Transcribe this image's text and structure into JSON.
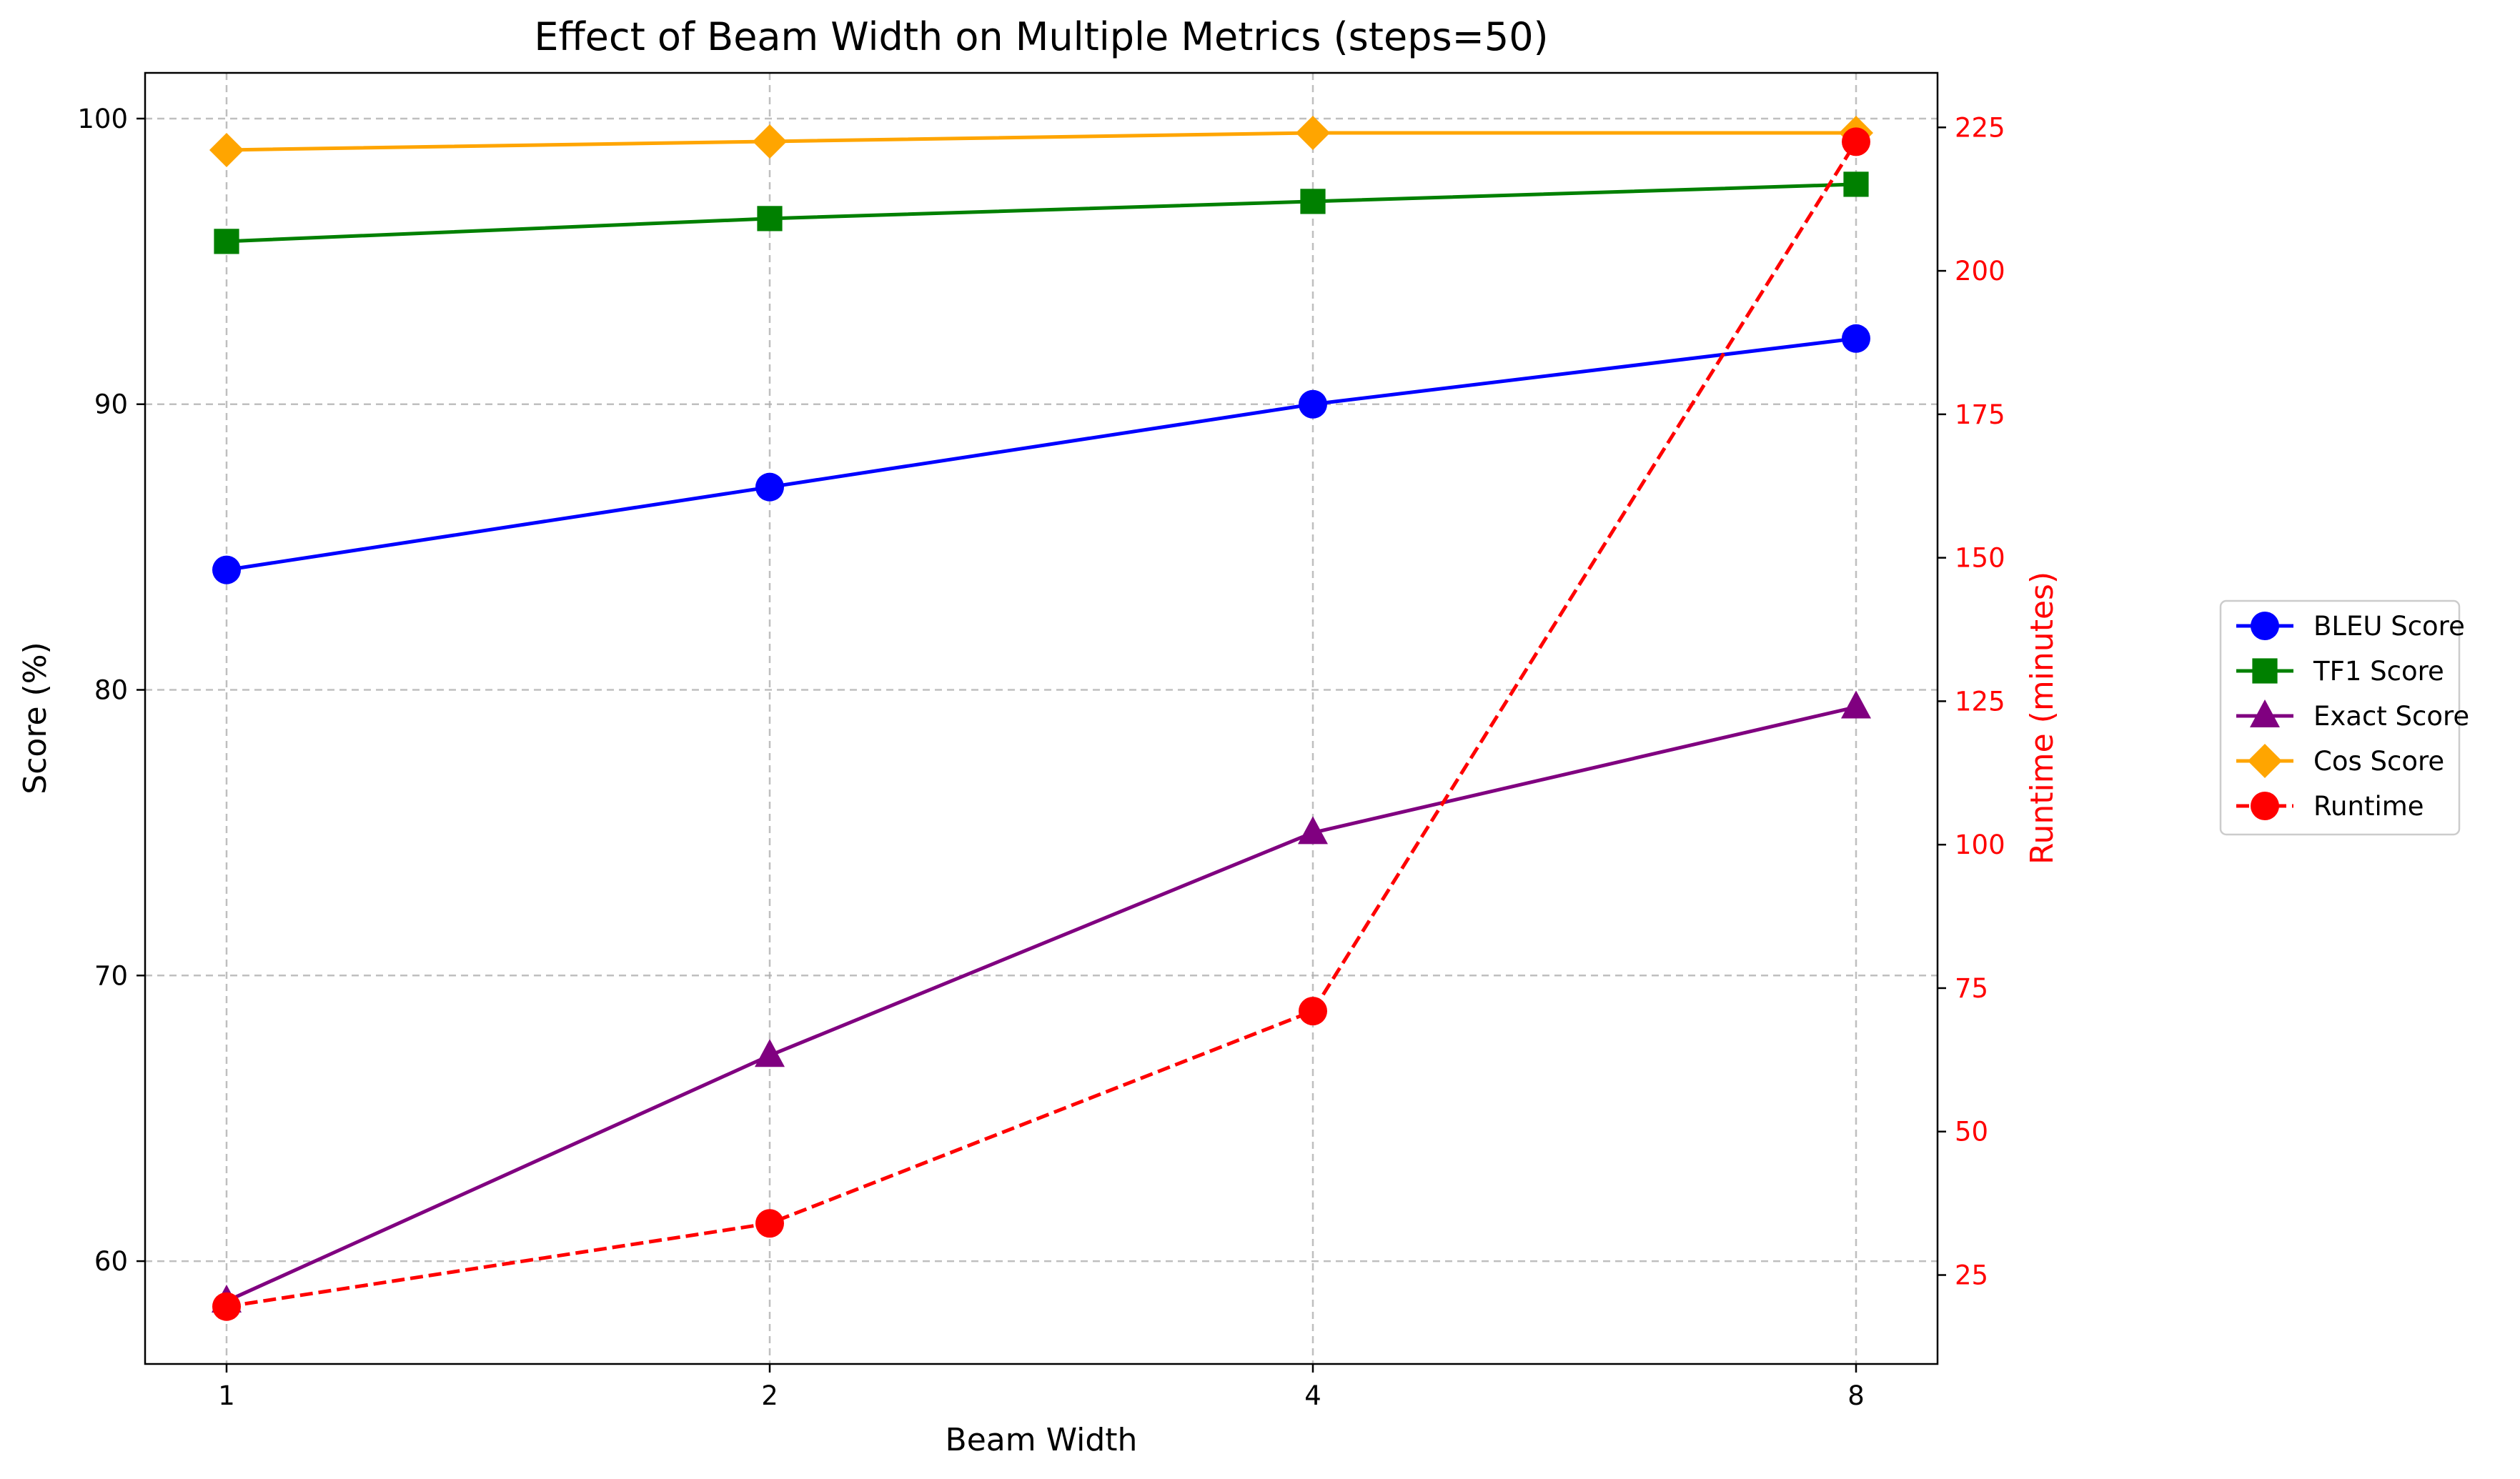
{
  "chart_data": {
    "type": "line",
    "title": "Effect of Beam Width on Multiple Metrics (steps=50)",
    "xlabel": "Beam Width",
    "ylabel": "Score (%)",
    "y2label": "Runtime (minutes)",
    "categories": [
      "1",
      "2",
      "4",
      "8"
    ],
    "ylim": [
      56.4,
      101.6
    ],
    "y2lim": [
      9.5,
      234.5
    ],
    "yticks": [
      60,
      70,
      80,
      90,
      100
    ],
    "y2ticks": [
      25,
      50,
      75,
      100,
      125,
      150,
      175,
      200,
      225
    ],
    "grid": true,
    "legend_position": "outside-right",
    "series": [
      {
        "name": "BLEU Score",
        "axis": "left",
        "color": "#0000ff",
        "marker": "circle",
        "dashed": false,
        "values": [
          84.2,
          87.1,
          90.0,
          92.3
        ]
      },
      {
        "name": "TF1 Score",
        "axis": "left",
        "color": "#008000",
        "marker": "square",
        "dashed": false,
        "values": [
          95.7,
          96.5,
          97.1,
          97.7
        ]
      },
      {
        "name": "Exact Score",
        "axis": "left",
        "color": "#800080",
        "marker": "triangle",
        "dashed": false,
        "values": [
          58.6,
          67.2,
          75.0,
          79.4
        ]
      },
      {
        "name": "Cos Score",
        "axis": "left",
        "color": "#ffa500",
        "marker": "diamond",
        "dashed": false,
        "values": [
          98.9,
          99.2,
          99.5,
          99.5
        ]
      },
      {
        "name": "Runtime",
        "axis": "right",
        "color": "#ff0000",
        "marker": "circle",
        "dashed": true,
        "values": [
          19.5,
          34.0,
          71.0,
          222.5
        ]
      }
    ]
  }
}
